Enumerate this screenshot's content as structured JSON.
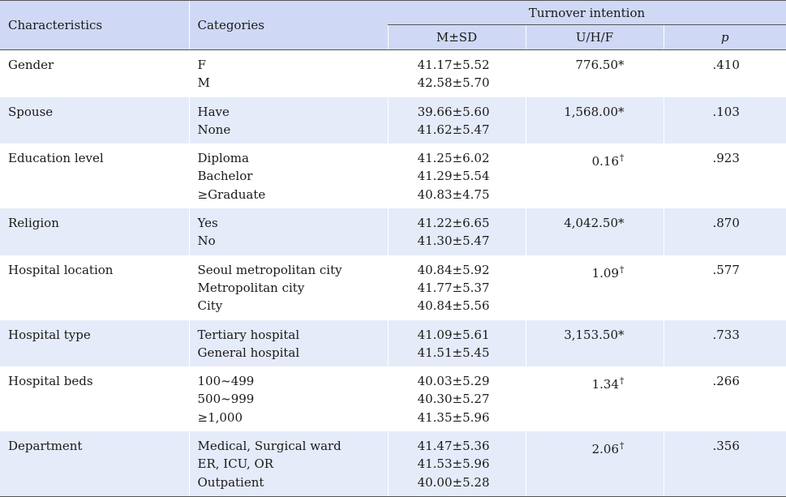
{
  "header": {
    "characteristics": "Characteristics",
    "categories": "Categories",
    "group": "Turnover intention",
    "msd": "M±SD",
    "uhf": "U/H/F",
    "p": "p"
  },
  "rows": [
    {
      "char": "Gender",
      "cats": [
        "F",
        "M"
      ],
      "ms": [
        "41.17±5.52",
        "42.58±5.70"
      ],
      "stat": "776.50",
      "mark": "*",
      "p": ".410"
    },
    {
      "char": "Spouse",
      "cats": [
        "Have",
        "None"
      ],
      "ms": [
        "39.66±5.60",
        "41.62±5.47"
      ],
      "stat": "1,568.00",
      "mark": "*",
      "p": ".103"
    },
    {
      "char": "Education level",
      "cats": [
        "Diploma",
        "Bachelor",
        "≥Graduate"
      ],
      "ms": [
        "41.25±6.02",
        "41.29±5.54",
        "40.83±4.75"
      ],
      "stat": "0.16",
      "mark": "†",
      "p": ".923"
    },
    {
      "char": "Religion",
      "cats": [
        "Yes",
        "No"
      ],
      "ms": [
        "41.22±6.65",
        "41.30±5.47"
      ],
      "stat": "4,042.50",
      "mark": "*",
      "p": ".870"
    },
    {
      "char": "Hospital location",
      "cats": [
        "Seoul metropolitan city",
        "Metropolitan city",
        "City"
      ],
      "ms": [
        "40.84±5.92",
        "41.77±5.37",
        "40.84±5.56"
      ],
      "stat": "1.09",
      "mark": "†",
      "p": ".577"
    },
    {
      "char": "Hospital type",
      "cats": [
        "Tertiary hospital",
        "General hospital"
      ],
      "ms": [
        "41.09±5.61",
        "41.51±5.45"
      ],
      "stat": "3,153.50",
      "mark": "*",
      "p": ".733"
    },
    {
      "char": "Hospital beds",
      "cats": [
        "100~499",
        "500~999",
        "≥1,000"
      ],
      "ms": [
        "40.03±5.29",
        "40.30±5.27",
        "41.35±5.96"
      ],
      "stat": "1.34",
      "mark": "†",
      "p": ".266"
    },
    {
      "char": "Department",
      "cats": [
        "Medical, Surgical ward",
        "ER, ICU, OR",
        "Outpatient"
      ],
      "ms": [
        "41.47±5.36",
        "41.53±5.96",
        "40.00±5.28"
      ],
      "stat": "2.06",
      "mark": "†",
      "p": ".356"
    }
  ]
}
